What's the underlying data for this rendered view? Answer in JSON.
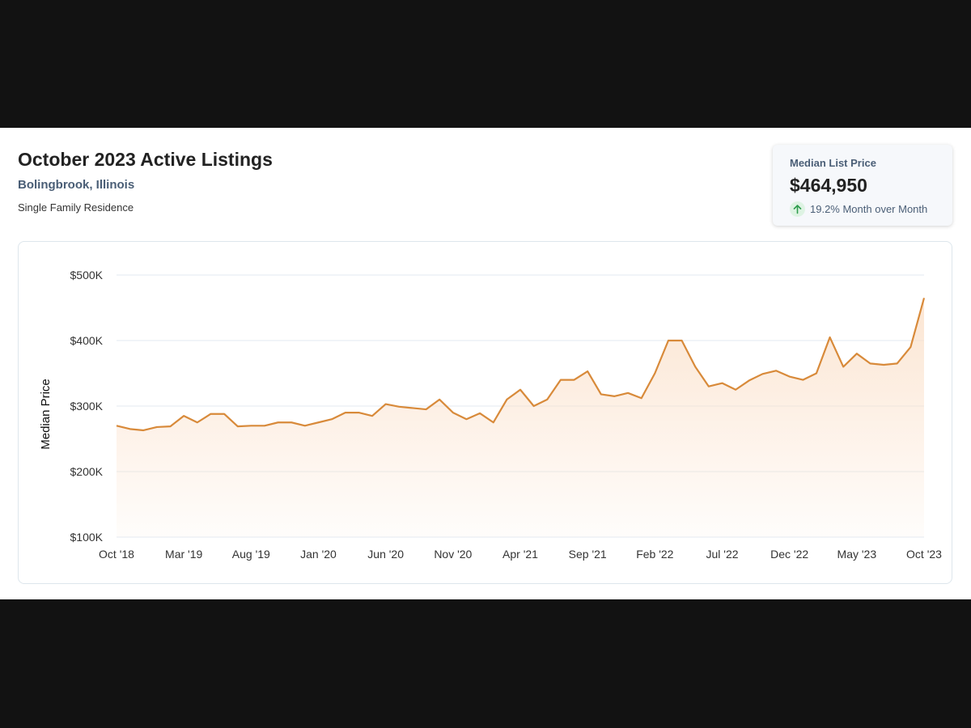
{
  "header": {
    "title": "October 2023 Active Listings",
    "location": "Bolingbrook, Illinois",
    "property_type": "Single Family Residence"
  },
  "stat_card": {
    "label": "Median List Price",
    "value": "$464,950",
    "change": "19.2% Month over Month",
    "change_icon": "arrow-up-icon"
  },
  "colors": {
    "line": "#d88a3a",
    "fill_top": "#fbe1cb",
    "grid": "#e3eaf0",
    "change_up": "#2e9d4d"
  },
  "chart_data": {
    "type": "area",
    "xlabel": "",
    "ylabel": "Median Price",
    "ylim": [
      100000,
      500000
    ],
    "y_ticks": [
      100000,
      200000,
      300000,
      400000,
      500000
    ],
    "y_tick_labels": [
      "$100K",
      "$200K",
      "$300K",
      "$400K",
      "$500K"
    ],
    "x_tick_labels": [
      "Oct '18",
      "Mar '19",
      "Aug '19",
      "Jan '20",
      "Jun '20",
      "Nov '20",
      "Apr '21",
      "Sep '21",
      "Feb '22",
      "Jul '22",
      "Dec '22",
      "May '23",
      "Oct '23"
    ],
    "grid": true,
    "legend": "none",
    "series": [
      {
        "x": [
          "2018-10",
          "2018-11",
          "2018-12",
          "2019-01",
          "2019-02",
          "2019-03",
          "2019-04",
          "2019-05",
          "2019-06",
          "2019-07",
          "2019-08",
          "2019-09",
          "2019-10",
          "2019-11",
          "2019-12",
          "2020-01",
          "2020-02",
          "2020-03",
          "2020-04",
          "2020-05",
          "2020-06",
          "2020-07",
          "2020-08",
          "2020-09",
          "2020-10",
          "2020-11",
          "2020-12",
          "2021-01",
          "2021-02",
          "2021-03",
          "2021-04",
          "2021-05",
          "2021-06",
          "2021-07",
          "2021-08",
          "2021-09",
          "2021-10",
          "2021-11",
          "2021-12",
          "2022-01",
          "2022-02",
          "2022-03",
          "2022-04",
          "2022-05",
          "2022-06",
          "2022-07",
          "2022-08",
          "2022-09",
          "2022-10",
          "2022-11",
          "2022-12",
          "2023-01",
          "2023-02",
          "2023-03",
          "2023-04",
          "2023-05",
          "2023-06",
          "2023-07",
          "2023-08",
          "2023-09",
          "2023-10"
        ],
        "values": [
          270000,
          265000,
          263000,
          268000,
          269000,
          285000,
          275000,
          288000,
          288000,
          269000,
          270000,
          270000,
          275000,
          275000,
          270000,
          275000,
          280000,
          290000,
          290000,
          285000,
          303000,
          299000,
          297000,
          295000,
          310000,
          290000,
          280000,
          289000,
          275000,
          310000,
          325000,
          300000,
          310000,
          340000,
          340000,
          353000,
          318000,
          315000,
          320000,
          312000,
          350000,
          400000,
          400000,
          360000,
          330000,
          335000,
          325000,
          339000,
          349000,
          354000,
          345000,
          340000,
          350000,
          405000,
          360000,
          380000,
          365000,
          363000,
          365000,
          390000,
          464950
        ]
      }
    ]
  }
}
